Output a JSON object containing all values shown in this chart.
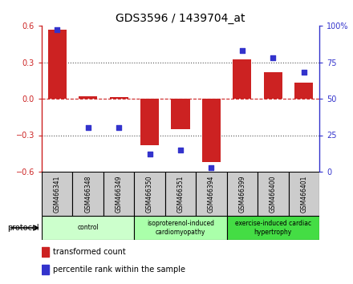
{
  "title": "GDS3596 / 1439704_at",
  "samples": [
    "GSM466341",
    "GSM466348",
    "GSM466349",
    "GSM466350",
    "GSM466351",
    "GSM466394",
    "GSM466399",
    "GSM466400",
    "GSM466401"
  ],
  "transformed_count": [
    0.57,
    0.02,
    0.01,
    -0.38,
    -0.25,
    -0.52,
    0.32,
    0.22,
    0.13
  ],
  "percentile_rank": [
    97,
    30,
    30,
    12,
    15,
    3,
    83,
    78,
    68
  ],
  "ylim_left": [
    -0.6,
    0.6
  ],
  "ylim_right": [
    0,
    100
  ],
  "yticks_left": [
    -0.6,
    -0.3,
    0,
    0.3,
    0.6
  ],
  "yticks_right": [
    0,
    25,
    50,
    75,
    100
  ],
  "ytick_labels_right": [
    "0",
    "25",
    "50",
    "75",
    "100%"
  ],
  "bar_color": "#cc2222",
  "scatter_color": "#3333cc",
  "zero_line_color": "#cc2222",
  "grid_color": "#555555",
  "groups": [
    {
      "label": "control",
      "start": 0,
      "end": 3,
      "color": "#ccffcc"
    },
    {
      "label": "isoproterenol-induced\ncardiomyopathy",
      "start": 3,
      "end": 6,
      "color": "#aaffaa"
    },
    {
      "label": "exercise-induced cardiac\nhypertrophy",
      "start": 6,
      "end": 9,
      "color": "#44dd44"
    }
  ],
  "protocol_label": "protocol",
  "legend_items": [
    {
      "color": "#cc2222",
      "label": "transformed count"
    },
    {
      "color": "#3333cc",
      "label": "percentile rank within the sample"
    }
  ],
  "header_gray": "#cccccc",
  "bar_width": 0.6,
  "scatter_size": 25
}
